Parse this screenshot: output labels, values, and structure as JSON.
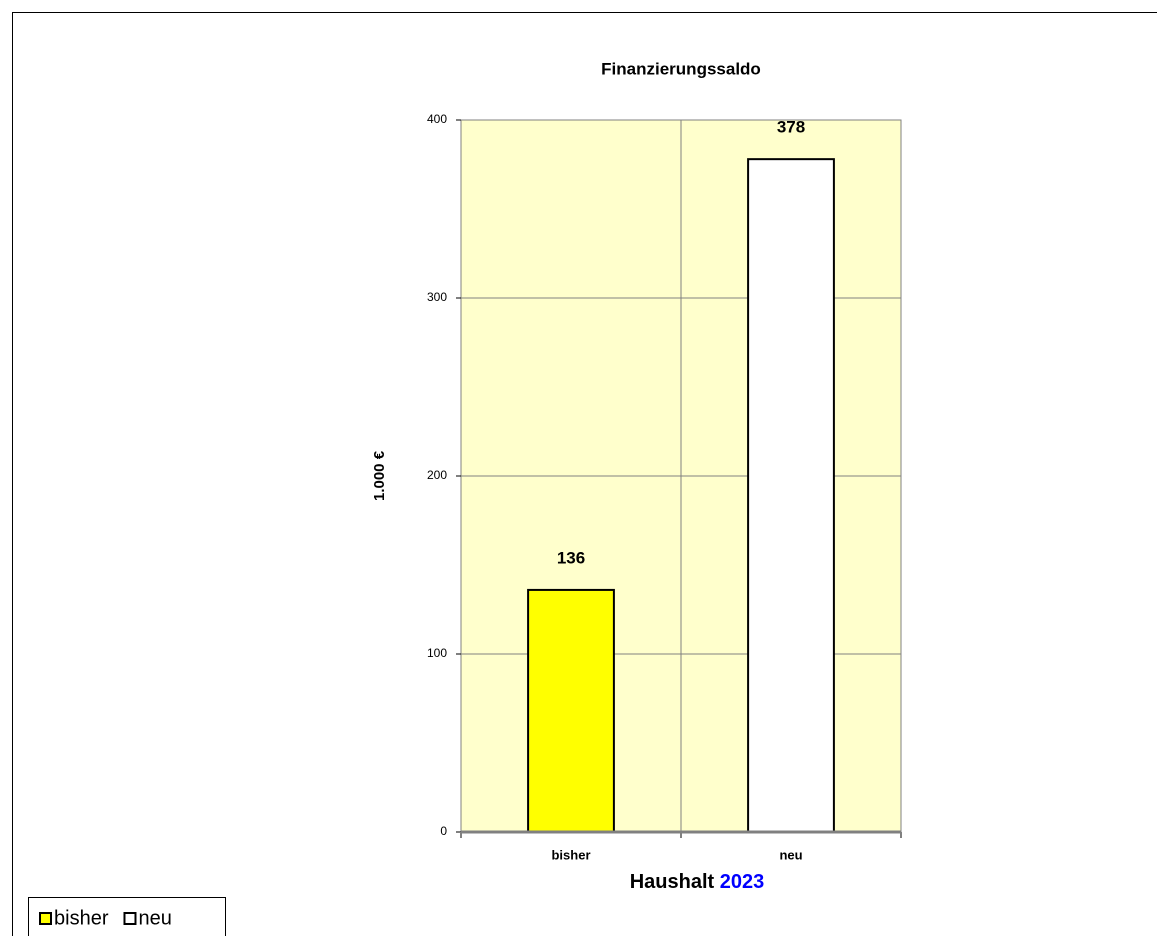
{
  "chart_data": {
    "type": "bar",
    "title": "Finanzierungssaldo",
    "ylabel": "1.000 €",
    "xlabel": {
      "text": "Haushalt",
      "highlight": "2023",
      "highlight_color": "#0000ff"
    },
    "categories": [
      "bisher",
      "neu"
    ],
    "values": [
      136,
      378
    ],
    "colors": [
      "#ffff00",
      "#ffffff"
    ],
    "ylim": [
      0,
      400
    ],
    "yticks": [
      0,
      100,
      200,
      300,
      400
    ],
    "grid": true,
    "plot_background": "#ffffcc",
    "legend": "bottom-left"
  }
}
